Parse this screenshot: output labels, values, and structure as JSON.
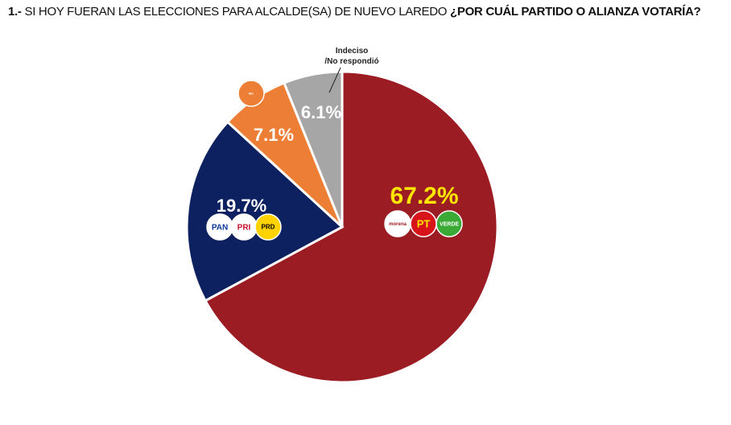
{
  "title": {
    "number": "1.-",
    "question": "SI HOY FUERAN LAS ELECCIONES PARA ALCALDE(SA) DE NUEVO LAREDO",
    "emphasis": "¿POR CUÁL PARTIDO O ALIANZA VOTARÍA?"
  },
  "chart_data": {
    "type": "pie",
    "title": "¿Por cuál partido o alianza votaría?",
    "start": "top",
    "direction": "clockwise",
    "slices": [
      {
        "label": "Morena / PT / Verde",
        "value": 67.2,
        "display": "67.2%",
        "color": "#9b1c23",
        "label_color": "#ffe600",
        "logos": [
          "morena",
          "PT",
          "VERDE"
        ]
      },
      {
        "label": "PAN / PRI / PRD",
        "value": 19.7,
        "display": "19.7%",
        "color": "#0d2160",
        "label_color": "#ffffff",
        "logos": [
          "PAN",
          "PRI",
          "PRD"
        ]
      },
      {
        "label": "Movimiento Ciudadano",
        "value": 7.1,
        "display": "7.1%",
        "color": "#ec7f35",
        "label_color": "#ffffff",
        "logos": [
          "MOVIMIENTO CIUDADANO"
        ]
      },
      {
        "label": "Indeciso /No respondió",
        "value": 6.1,
        "display": "6.1%",
        "color": "#a6a6a6",
        "label_color": "#ffffff",
        "logos": []
      }
    ],
    "annotation": [
      "Indeciso",
      "/No respondió"
    ]
  }
}
